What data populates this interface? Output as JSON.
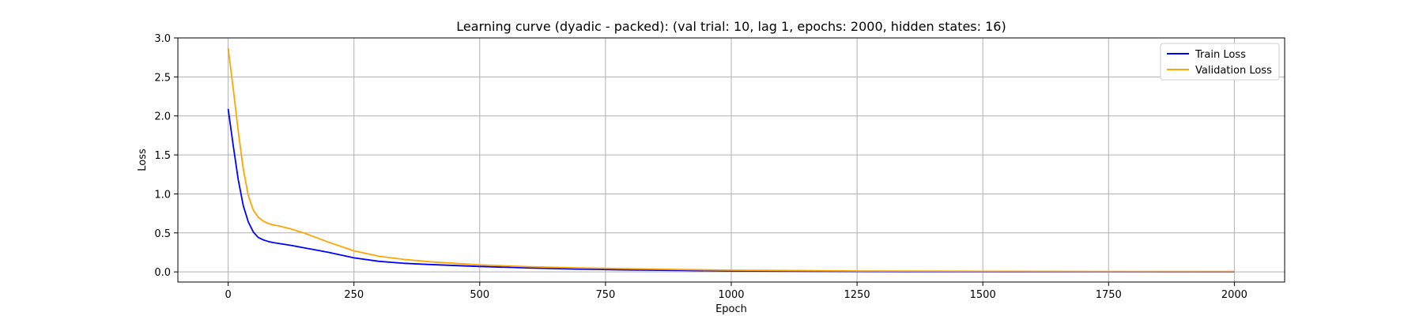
{
  "chart_data": {
    "type": "line",
    "title": "Learning curve (dyadic - packed): (val trial: 10, lag 1, epochs: 2000, hidden states: 16)",
    "xlabel": "Epoch",
    "ylabel": "Loss",
    "xlim": [
      -100,
      2100
    ],
    "ylim": [
      -0.13,
      3.0
    ],
    "xticks": [
      0,
      250,
      500,
      750,
      1000,
      1250,
      1500,
      1750,
      2000
    ],
    "xtick_labels": [
      "0",
      "250",
      "500",
      "750",
      "1000",
      "1250",
      "1500",
      "1750",
      "2000"
    ],
    "yticks": [
      0.0,
      0.5,
      1.0,
      1.5,
      2.0,
      2.5,
      3.0
    ],
    "ytick_labels": [
      "0.0",
      "0.5",
      "1.0",
      "1.5",
      "2.0",
      "2.5",
      "3.0"
    ],
    "grid": true,
    "legend_position": "top-right",
    "x": [
      0,
      10,
      20,
      30,
      40,
      50,
      60,
      70,
      80,
      90,
      100,
      125,
      150,
      175,
      200,
      250,
      300,
      350,
      400,
      500,
      600,
      700,
      750,
      800,
      900,
      1000,
      1250,
      1500,
      1750,
      2000
    ],
    "series": [
      {
        "name": "Train Loss",
        "color": "#0000ff",
        "values": [
          2.09,
          1.62,
          1.18,
          0.85,
          0.64,
          0.51,
          0.44,
          0.41,
          0.39,
          0.375,
          0.365,
          0.34,
          0.31,
          0.28,
          0.25,
          0.18,
          0.135,
          0.11,
          0.095,
          0.07,
          0.05,
          0.035,
          0.03,
          0.025,
          0.018,
          0.012,
          0.006,
          0.003,
          0.002,
          0.001
        ]
      },
      {
        "name": "Validation Loss",
        "color": "#ffa500",
        "values": [
          2.87,
          2.35,
          1.8,
          1.32,
          0.98,
          0.79,
          0.7,
          0.65,
          0.62,
          0.6,
          0.59,
          0.55,
          0.5,
          0.44,
          0.38,
          0.27,
          0.2,
          0.16,
          0.13,
          0.09,
          0.065,
          0.05,
          0.045,
          0.04,
          0.03,
          0.022,
          0.012,
          0.008,
          0.006,
          0.005
        ]
      }
    ]
  }
}
